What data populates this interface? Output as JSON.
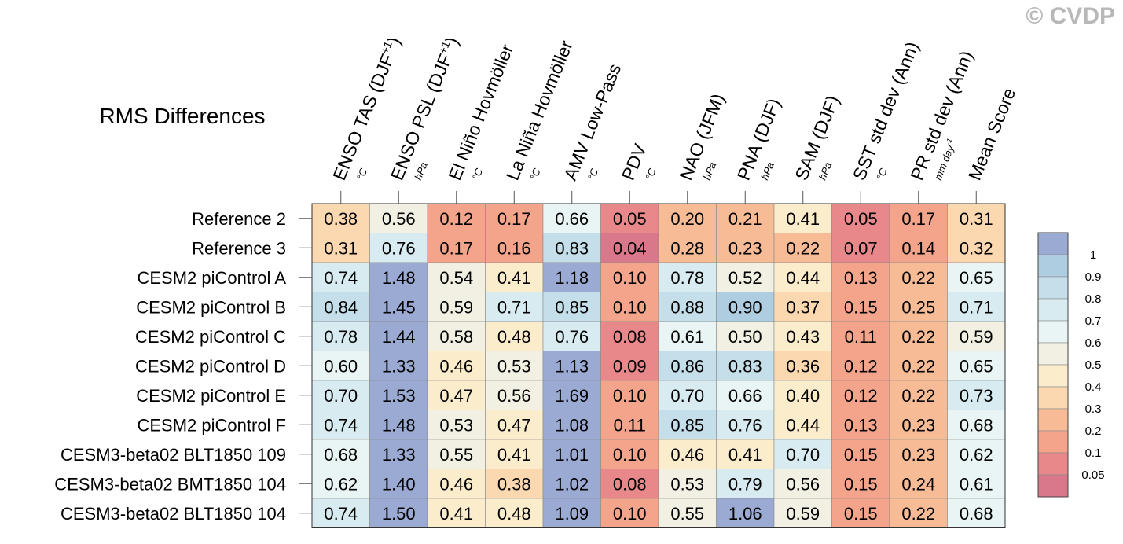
{
  "watermark": "© CVDP",
  "chart_data": {
    "type": "heatmap",
    "title": "RMS Differences",
    "columns": [
      {
        "label": "ENSO TAS (DJF",
        "sup": "+1",
        "close": ")",
        "unit": "°C"
      },
      {
        "label": "ENSO PSL (DJF",
        "sup": "+1",
        "close": ")",
        "unit": "hPa"
      },
      {
        "label": "El Niño Hovmöller",
        "unit": "°C"
      },
      {
        "label": "La Niña Hovmöller",
        "unit": "°C"
      },
      {
        "label": "AMV Low-Pass",
        "unit": "°C"
      },
      {
        "label": "PDV",
        "unit": "°C"
      },
      {
        "label": "NAO (JFM)",
        "unit": "hPa"
      },
      {
        "label": "PNA (DJF)",
        "unit": "hPa"
      },
      {
        "label": "SAM (DJF)",
        "unit": "hPa"
      },
      {
        "label": "SST std dev (Ann)",
        "unit": "°C"
      },
      {
        "label": "PR std dev (Ann)",
        "unit": "mm day",
        "unit_sup": "-1"
      },
      {
        "label": "Mean Score",
        "unit": ""
      }
    ],
    "rows": [
      "Reference 2",
      "Reference 3",
      "CESM2 piControl A",
      "CESM2 piControl B",
      "CESM2 piControl C",
      "CESM2 piControl D",
      "CESM2 piControl E",
      "CESM2 piControl F",
      "CESM3-beta02 BLT1850 109",
      "CESM3-beta02 BMT1850 104",
      "CESM3-beta02 BLT1850 104"
    ],
    "values": [
      [
        "0.38",
        "0.56",
        "0.12",
        "0.17",
        "0.66",
        "0.05",
        "0.20",
        "0.21",
        "0.41",
        "0.05",
        "0.17",
        "0.31"
      ],
      [
        "0.31",
        "0.76",
        "0.17",
        "0.16",
        "0.83",
        "0.04",
        "0.28",
        "0.23",
        "0.22",
        "0.07",
        "0.14",
        "0.32"
      ],
      [
        "0.74",
        "1.48",
        "0.54",
        "0.41",
        "1.18",
        "0.10",
        "0.78",
        "0.52",
        "0.44",
        "0.13",
        "0.22",
        "0.65"
      ],
      [
        "0.84",
        "1.45",
        "0.59",
        "0.71",
        "0.85",
        "0.10",
        "0.88",
        "0.90",
        "0.37",
        "0.15",
        "0.25",
        "0.71"
      ],
      [
        "0.78",
        "1.44",
        "0.58",
        "0.48",
        "0.76",
        "0.08",
        "0.61",
        "0.50",
        "0.43",
        "0.11",
        "0.22",
        "0.59"
      ],
      [
        "0.60",
        "1.33",
        "0.46",
        "0.53",
        "1.13",
        "0.09",
        "0.86",
        "0.83",
        "0.36",
        "0.12",
        "0.22",
        "0.65"
      ],
      [
        "0.70",
        "1.53",
        "0.47",
        "0.56",
        "1.69",
        "0.10",
        "0.70",
        "0.66",
        "0.40",
        "0.12",
        "0.22",
        "0.73"
      ],
      [
        "0.74",
        "1.48",
        "0.53",
        "0.47",
        "1.08",
        "0.11",
        "0.85",
        "0.76",
        "0.44",
        "0.13",
        "0.23",
        "0.68"
      ],
      [
        "0.68",
        "1.33",
        "0.55",
        "0.41",
        "1.01",
        "0.10",
        "0.46",
        "0.41",
        "0.70",
        "0.15",
        "0.23",
        "0.62"
      ],
      [
        "0.62",
        "1.40",
        "0.46",
        "0.38",
        "1.02",
        "0.08",
        "0.53",
        "0.79",
        "0.56",
        "0.15",
        "0.24",
        "0.61"
      ],
      [
        "0.74",
        "1.50",
        "0.41",
        "0.48",
        "1.09",
        "0.10",
        "0.55",
        "1.06",
        "0.59",
        "0.15",
        "0.22",
        "0.68"
      ]
    ],
    "colorbar": {
      "labels": [
        "1",
        "0.9",
        "0.8",
        "0.7",
        "0.6",
        "0.5",
        "0.4",
        "0.3",
        "0.2",
        "0.1",
        "0.05"
      ],
      "thresholds": [
        1,
        0.9,
        0.8,
        0.7,
        0.6,
        0.5,
        0.4,
        0.3,
        0.2,
        0.1,
        0.05
      ],
      "colors": [
        "#9aaad2",
        "#aecde1",
        "#c4dfea",
        "#d8ebf0",
        "#e9f4f4",
        "#f2f0e2",
        "#fbeccb",
        "#fbd8b0",
        "#f7bb96",
        "#f3a48a",
        "#e8888a",
        "#d8788a"
      ]
    }
  }
}
